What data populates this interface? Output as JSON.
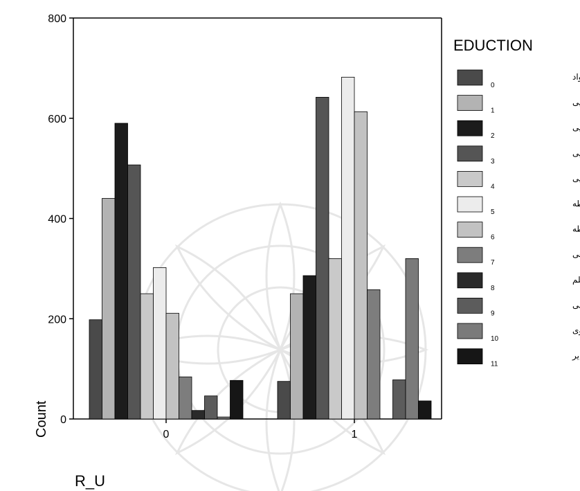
{
  "chart_data": {
    "type": "bar",
    "xlabel": "R_U",
    "ylabel": "Count",
    "ylim": [
      0,
      800
    ],
    "yticks": [
      0,
      200,
      400,
      600,
      800
    ],
    "categories": [
      "0",
      "1"
    ],
    "legend": {
      "title": "EDUCTION",
      "placement": "right",
      "items": [
        {
          "code": "0",
          "label": "بی‌سواد"
        },
        {
          "code": "1",
          "label": "ابتدایی"
        },
        {
          "code": "2",
          "label": "پایان ابتدایی"
        },
        {
          "code": "3",
          "label": "راهنمایی"
        },
        {
          "code": "4",
          "label": "پایان راهنمایی"
        },
        {
          "code": "5",
          "label": "دوره متوسطه"
        },
        {
          "code": "6",
          "label": "پایان متوسطه"
        },
        {
          "code": "7",
          "label": "پیش دانشگاهی"
        },
        {
          "code": "8",
          "label": "فوق دیپلم"
        },
        {
          "code": "9",
          "label": "سایر دوره های عالی"
        },
        {
          "code": "10",
          "label": "تحصیلات حوزوی"
        },
        {
          "code": "11",
          "label": "سایر"
        }
      ]
    },
    "series_colors": [
      "#4a4a4a",
      "#b3b3b3",
      "#1c1c1c",
      "#555555",
      "#c9c9c9",
      "#ececec",
      "#c2c2c2",
      "#7d7d7d",
      "#2a2a2a",
      "#5c5c5c",
      "#7a7a7a",
      "#161616"
    ],
    "series": [
      {
        "code": "0",
        "values": [
          198,
          75
        ]
      },
      {
        "code": "1",
        "values": [
          440,
          250
        ]
      },
      {
        "code": "2",
        "values": [
          590,
          286
        ]
      },
      {
        "code": "3",
        "values": [
          507,
          642
        ]
      },
      {
        "code": "4",
        "values": [
          250,
          320
        ]
      },
      {
        "code": "5",
        "values": [
          302,
          682
        ]
      },
      {
        "code": "6",
        "values": [
          211,
          613
        ]
      },
      {
        "code": "7",
        "values": [
          84,
          258
        ]
      },
      {
        "code": "8",
        "values": [
          17,
          0
        ]
      },
      {
        "code": "9",
        "values": [
          46,
          78
        ]
      },
      {
        "code": "10",
        "values": [
          4,
          320
        ]
      },
      {
        "code": "11",
        "values": [
          77,
          36
        ]
      }
    ]
  }
}
